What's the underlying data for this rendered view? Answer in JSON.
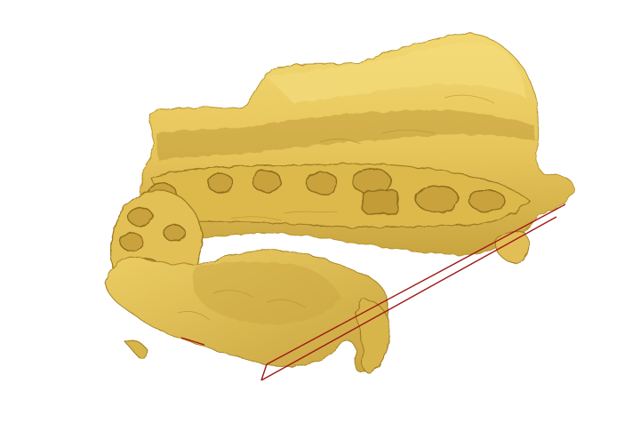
{
  "scene": {
    "subject": "3d-jaw-bone-model-icon",
    "overlay": "cutting-plane-lines-icon",
    "colors": {
      "background": "#ffffff",
      "bone_base": "#e6c45a",
      "bone_light": "#f2d872",
      "bone_dark": "#b8942e",
      "bone_shadow": "#8f6f1c",
      "plane_line": "#a01818"
    }
  }
}
